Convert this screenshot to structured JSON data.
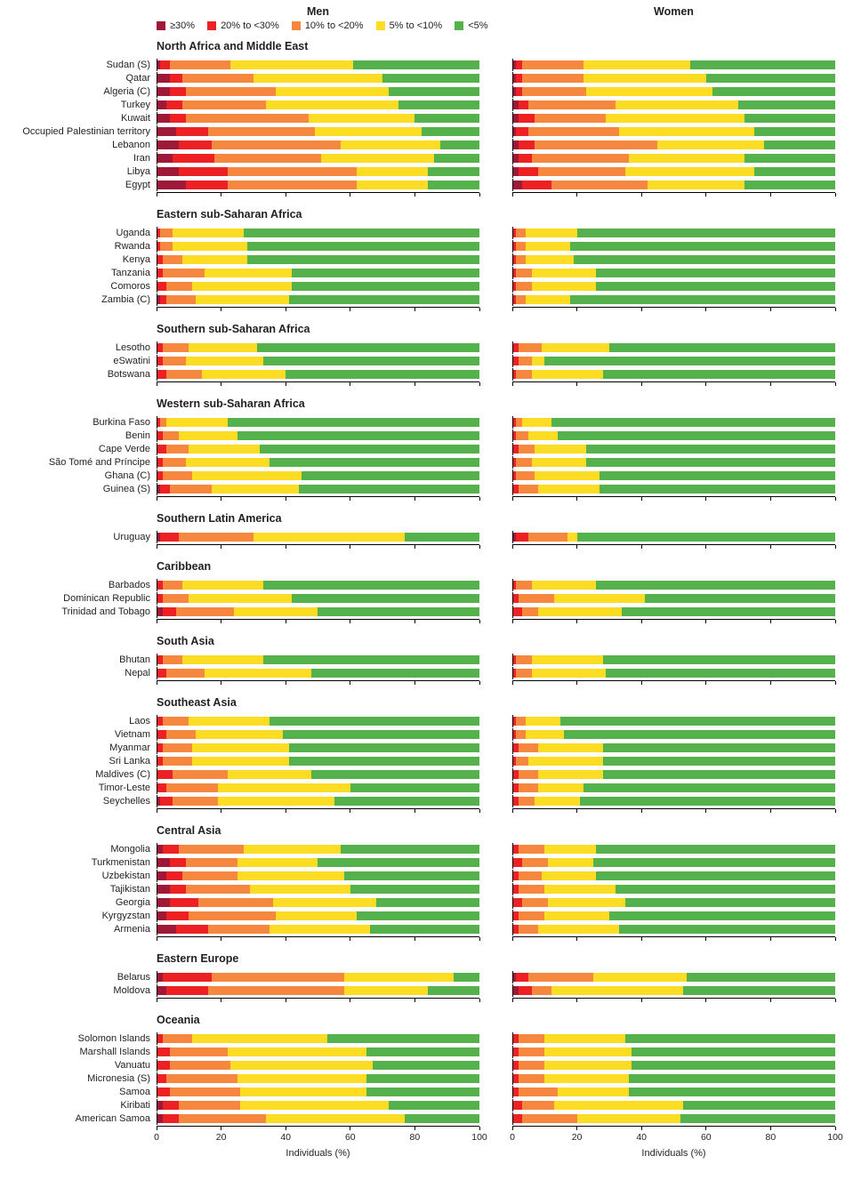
{
  "page": {
    "col_titles": [
      "Men",
      "Women"
    ],
    "xlabel": "Individuals (%)"
  },
  "legend": [
    {
      "label": "≥30%",
      "color": "#a01837"
    },
    {
      "label": "20% to <30%",
      "color": "#ed2124"
    },
    {
      "label": "10% to <20%",
      "color": "#f5873e"
    },
    {
      "label": "5% to <10%",
      "color": "#fcdd24"
    },
    {
      "label": "<5%",
      "color": "#55b14c"
    }
  ],
  "chart_data": {
    "type": "bar",
    "stacked": true,
    "orientation": "horizontal",
    "xlabel": "Individuals (%)",
    "xlim": [
      0,
      100
    ],
    "x_ticks": [
      0,
      20,
      40,
      60,
      80,
      100
    ],
    "series_names": [
      "≥30%",
      "20% to <30%",
      "10% to <20%",
      "5% to <10%",
      "<5%"
    ],
    "colors": [
      "#a01837",
      "#ed2124",
      "#f5873e",
      "#fcdd24",
      "#55b14c"
    ],
    "columns": [
      "men",
      "women"
    ],
    "groups": [
      {
        "region": "North Africa and Middle East",
        "countries": [
          "Sudan (S)",
          "Qatar",
          "Algeria (C)",
          "Turkey",
          "Kuwait",
          "Occupied Palestinian territory",
          "Lebanon",
          "Iran",
          "Libya",
          "Egypt"
        ],
        "men": [
          [
            1,
            3,
            19,
            38,
            39
          ],
          [
            4,
            4,
            22,
            40,
            30
          ],
          [
            4,
            5,
            28,
            35,
            28
          ],
          [
            3,
            5,
            26,
            41,
            25
          ],
          [
            4,
            5,
            38,
            33,
            20
          ],
          [
            6,
            10,
            33,
            33,
            18
          ],
          [
            7,
            10,
            40,
            31,
            12
          ],
          [
            5,
            13,
            33,
            35,
            14
          ],
          [
            7,
            15,
            40,
            22,
            16
          ],
          [
            9,
            13,
            40,
            22,
            16
          ]
        ],
        "women": [
          [
            1,
            2,
            19,
            33,
            45
          ],
          [
            1,
            2,
            19,
            38,
            40
          ],
          [
            1,
            2,
            20,
            39,
            38
          ],
          [
            2,
            3,
            27,
            38,
            30
          ],
          [
            2,
            5,
            22,
            43,
            28
          ],
          [
            1,
            4,
            28,
            42,
            25
          ],
          [
            2,
            5,
            38,
            33,
            22
          ],
          [
            2,
            4,
            30,
            36,
            28
          ],
          [
            2,
            6,
            27,
            40,
            25
          ],
          [
            3,
            9,
            30,
            30,
            28
          ]
        ]
      },
      {
        "region": "Eastern sub-Saharan Africa",
        "countries": [
          "Uganda",
          "Rwanda",
          "Kenya",
          "Tanzania",
          "Comoros",
          "Zambia (C)"
        ],
        "men": [
          [
            0,
            1,
            4,
            22,
            73
          ],
          [
            0,
            1,
            4,
            23,
            72
          ],
          [
            0,
            2,
            6,
            20,
            72
          ],
          [
            0,
            2,
            13,
            27,
            58
          ],
          [
            0,
            3,
            8,
            31,
            58
          ],
          [
            1,
            2,
            9,
            29,
            59
          ]
        ],
        "women": [
          [
            0,
            1,
            3,
            16,
            80
          ],
          [
            0,
            1,
            3,
            14,
            82
          ],
          [
            0,
            1,
            3,
            15,
            81
          ],
          [
            0,
            1,
            5,
            20,
            74
          ],
          [
            0,
            1,
            5,
            20,
            74
          ],
          [
            0,
            1,
            3,
            14,
            82
          ]
        ]
      },
      {
        "region": "Southern sub-Saharan Africa",
        "countries": [
          "Lesotho",
          "eSwatini",
          "Botswana"
        ],
        "men": [
          [
            0,
            2,
            8,
            21,
            69
          ],
          [
            0,
            2,
            7,
            24,
            67
          ],
          [
            0,
            3,
            11,
            26,
            60
          ]
        ],
        "women": [
          [
            0,
            2,
            7,
            21,
            70
          ],
          [
            0,
            2,
            4,
            4,
            90
          ],
          [
            0,
            1,
            5,
            22,
            72
          ]
        ]
      },
      {
        "region": "Western sub-Saharan Africa",
        "countries": [
          "Burkina Faso",
          "Benin",
          "Cape Verde",
          "São Tomé and Príncipe",
          "Ghana (C)",
          "Guinea (S)"
        ],
        "men": [
          [
            0,
            1,
            2,
            19,
            78
          ],
          [
            0,
            2,
            5,
            18,
            75
          ],
          [
            0,
            3,
            7,
            22,
            68
          ],
          [
            0,
            2,
            7,
            26,
            65
          ],
          [
            0,
            2,
            9,
            34,
            55
          ],
          [
            1,
            3,
            13,
            27,
            56
          ]
        ],
        "women": [
          [
            0,
            1,
            2,
            9,
            88
          ],
          [
            0,
            1,
            4,
            9,
            86
          ],
          [
            0,
            2,
            5,
            16,
            77
          ],
          [
            0,
            1,
            5,
            17,
            77
          ],
          [
            0,
            1,
            6,
            20,
            73
          ],
          [
            0,
            2,
            6,
            19,
            73
          ]
        ]
      },
      {
        "region": "Southern Latin America",
        "countries": [
          "Uruguay"
        ],
        "men": [
          [
            1,
            6,
            23,
            47,
            23
          ]
        ],
        "women": [
          [
            1,
            4,
            12,
            3,
            80
          ]
        ]
      },
      {
        "region": "Caribbean",
        "countries": [
          "Barbados",
          "Dominican Republic",
          "Trinidad and Tobago"
        ],
        "men": [
          [
            0,
            2,
            6,
            25,
            67
          ],
          [
            0,
            2,
            8,
            32,
            58
          ],
          [
            2,
            4,
            18,
            26,
            50
          ]
        ],
        "women": [
          [
            0,
            1,
            5,
            20,
            74
          ],
          [
            0,
            2,
            11,
            28,
            59
          ],
          [
            0,
            3,
            5,
            26,
            66
          ]
        ]
      },
      {
        "region": "South Asia",
        "countries": [
          "Bhutan",
          "Nepal"
        ],
        "men": [
          [
            0,
            2,
            6,
            25,
            67
          ],
          [
            0,
            3,
            12,
            33,
            52
          ]
        ],
        "women": [
          [
            0,
            1,
            5,
            22,
            72
          ],
          [
            0,
            1,
            5,
            23,
            71
          ]
        ]
      },
      {
        "region": "Southeast Asia",
        "countries": [
          "Laos",
          "Vietnam",
          "Myanmar",
          "Sri Lanka",
          "Maldives (C)",
          "Timor-Leste",
          "Seychelles"
        ],
        "men": [
          [
            0,
            2,
            8,
            25,
            65
          ],
          [
            0,
            3,
            9,
            27,
            61
          ],
          [
            0,
            2,
            9,
            30,
            59
          ],
          [
            0,
            2,
            9,
            30,
            59
          ],
          [
            0,
            5,
            17,
            26,
            52
          ],
          [
            0,
            3,
            16,
            41,
            40
          ],
          [
            1,
            4,
            14,
            36,
            45
          ]
        ],
        "women": [
          [
            0,
            1,
            3,
            11,
            85
          ],
          [
            0,
            1,
            3,
            12,
            84
          ],
          [
            0,
            2,
            6,
            20,
            72
          ],
          [
            0,
            1,
            4,
            23,
            72
          ],
          [
            0,
            2,
            6,
            20,
            72
          ],
          [
            0,
            2,
            6,
            14,
            78
          ],
          [
            0,
            2,
            5,
            14,
            79
          ]
        ]
      },
      {
        "region": "Central Asia",
        "countries": [
          "Mongolia",
          "Turkmenistan",
          "Uzbekistan",
          "Tajikistan",
          "Georgia",
          "Kyrgyzstan",
          "Armenia"
        ],
        "men": [
          [
            2,
            5,
            20,
            30,
            43
          ],
          [
            4,
            5,
            16,
            25,
            50
          ],
          [
            3,
            5,
            17,
            33,
            42
          ],
          [
            4,
            5,
            20,
            31,
            40
          ],
          [
            4,
            9,
            23,
            32,
            32
          ],
          [
            3,
            7,
            27,
            25,
            38
          ],
          [
            6,
            10,
            19,
            31,
            34
          ]
        ],
        "women": [
          [
            0,
            2,
            8,
            16,
            74
          ],
          [
            0,
            3,
            8,
            14,
            75
          ],
          [
            0,
            2,
            7,
            17,
            74
          ],
          [
            0,
            2,
            8,
            22,
            68
          ],
          [
            0,
            3,
            8,
            24,
            65
          ],
          [
            0,
            2,
            8,
            20,
            70
          ],
          [
            0,
            2,
            6,
            25,
            67
          ]
        ]
      },
      {
        "region": "Eastern Europe",
        "countries": [
          "Belarus",
          "Moldova"
        ],
        "men": [
          [
            2,
            15,
            41,
            34,
            8
          ],
          [
            3,
            13,
            42,
            26,
            16
          ]
        ],
        "women": [
          [
            1,
            4,
            20,
            29,
            46
          ],
          [
            2,
            4,
            6,
            41,
            47
          ]
        ]
      },
      {
        "region": "Oceania",
        "countries": [
          "Solomon Islands",
          "Marshall Islands",
          "Vanuatu",
          "Micronesia (S)",
          "Samoa",
          "Kiribati",
          "American Samoa"
        ],
        "men": [
          [
            0,
            2,
            9,
            42,
            47
          ],
          [
            0,
            4,
            18,
            43,
            35
          ],
          [
            0,
            4,
            19,
            44,
            33
          ],
          [
            0,
            3,
            22,
            40,
            35
          ],
          [
            0,
            4,
            22,
            39,
            35
          ],
          [
            2,
            5,
            19,
            46,
            28
          ],
          [
            2,
            5,
            27,
            43,
            23
          ]
        ],
        "women": [
          [
            0,
            2,
            8,
            25,
            65
          ],
          [
            0,
            2,
            8,
            27,
            63
          ],
          [
            0,
            2,
            8,
            27,
            63
          ],
          [
            0,
            2,
            8,
            26,
            64
          ],
          [
            0,
            2,
            12,
            22,
            64
          ],
          [
            0,
            3,
            10,
            40,
            47
          ],
          [
            0,
            3,
            17,
            32,
            48
          ]
        ]
      }
    ]
  }
}
